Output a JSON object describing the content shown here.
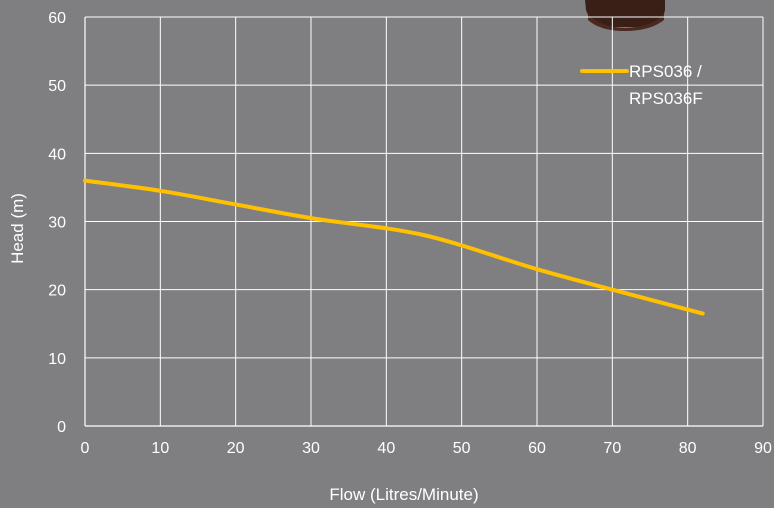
{
  "chart_data": {
    "type": "line",
    "xlabel": "Flow (Litres/Minute)",
    "ylabel": "Head (m)",
    "xlim": [
      0,
      90
    ],
    "ylim": [
      0,
      60
    ],
    "x_ticks": [
      "0",
      "10",
      "20",
      "30",
      "40",
      "50",
      "60",
      "70",
      "80",
      "90"
    ],
    "y_ticks": [
      "0",
      "10",
      "20",
      "30",
      "40",
      "50",
      "60"
    ],
    "grid": true,
    "legend_position": "top-right",
    "series": [
      {
        "name": "RPS036 / RPS036F",
        "legend_lines": [
          "RPS036 /",
          "RPS036F"
        ],
        "color": "#ffc000",
        "points": [
          {
            "x": 0,
            "y": 36
          },
          {
            "x": 10,
            "y": 34.5
          },
          {
            "x": 20,
            "y": 32.5
          },
          {
            "x": 30,
            "y": 30.5
          },
          {
            "x": 40,
            "y": 29
          },
          {
            "x": 45,
            "y": 28
          },
          {
            "x": 50,
            "y": 26.5
          },
          {
            "x": 60,
            "y": 23
          },
          {
            "x": 70,
            "y": 20
          },
          {
            "x": 82,
            "y": 16.5
          }
        ]
      }
    ]
  }
}
